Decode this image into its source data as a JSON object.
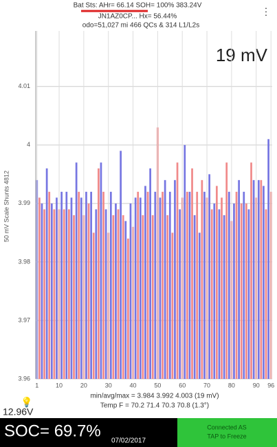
{
  "header": {
    "status": "Bat Sts:  AHr= 66.14  SOH= 100%  383.24V",
    "vin": "JN1AZ0CP...  Hx= 56.44%",
    "odo": "odo=51,027 mi 466 QCs & 314 L1/L2s"
  },
  "chart_data": {
    "type": "bar",
    "annotation": "19 mV",
    "y_label": "50 mV Scale   Shunts 4812",
    "categories": [
      1,
      null,
      null,
      null,
      null,
      null,
      null,
      null,
      null,
      10,
      null,
      null,
      null,
      null,
      null,
      null,
      null,
      null,
      null,
      20,
      null,
      null,
      null,
      null,
      null,
      null,
      null,
      null,
      null,
      30,
      null,
      null,
      null,
      null,
      null,
      null,
      null,
      null,
      null,
      40,
      null,
      null,
      null,
      null,
      null,
      null,
      null,
      null,
      null,
      50,
      null,
      null,
      null,
      null,
      null,
      null,
      null,
      null,
      null,
      60,
      null,
      null,
      null,
      null,
      null,
      null,
      null,
      null,
      null,
      70,
      null,
      null,
      null,
      null,
      null,
      null,
      null,
      null,
      null,
      80,
      null,
      null,
      null,
      null,
      null,
      null,
      null,
      null,
      null,
      90,
      null,
      null,
      null,
      null,
      null,
      96
    ],
    "values": [
      3.994,
      3.991,
      3.99,
      3.989,
      3.996,
      3.992,
      3.99,
      3.989,
      3.991,
      3.989,
      3.992,
      3.989,
      3.992,
      3.989,
      3.991,
      3.988,
      3.997,
      3.992,
      3.991,
      3.988,
      3.992,
      3.99,
      3.992,
      3.985,
      3.989,
      3.996,
      3.997,
      3.992,
      3.989,
      3.985,
      3.992,
      3.988,
      3.99,
      3.989,
      3.999,
      3.988,
      3.987,
      3.984,
      3.99,
      3.986,
      3.991,
      3.992,
      3.991,
      3.988,
      3.993,
      3.992,
      3.996,
      3.988,
      3.992,
      4.003,
      3.991,
      3.992,
      3.994,
      3.988,
      3.992,
      3.985,
      3.994,
      3.997,
      3.989,
      3.991,
      4.0,
      3.992,
      3.992,
      3.996,
      3.988,
      3.992,
      3.985,
      3.994,
      3.992,
      3.991,
      3.995,
      3.989,
      3.99,
      3.993,
      3.989,
      3.991,
      3.988,
      3.997,
      3.992,
      3.987,
      3.99,
      3.992,
      3.994,
      3.99,
      3.992,
      3.99,
      3.989,
      3.997,
      3.994,
      3.991,
      3.994,
      3.994,
      3.993,
      3.989,
      4.001,
      3.992
    ],
    "colors": [
      "#7676e2",
      "#f08a8a"
    ],
    "ylim": [
      3.96,
      4.0195
    ],
    "yticks": [
      3.96,
      3.97,
      3.98,
      3.99,
      4.0,
      4.01
    ],
    "grid": true
  },
  "footer": {
    "stats": "min/avg/max = 3.984 3.992 4.003 (19 mV)",
    "temp": "Temp F = 70.2  71.4  70.3  70.8  (1.3°)",
    "aux_voltage": "12.96V",
    "soc": "SOC= 69.7%",
    "date": "07/02/2017",
    "connection": [
      "Connected AS",
      "TAP to Freeze"
    ]
  }
}
